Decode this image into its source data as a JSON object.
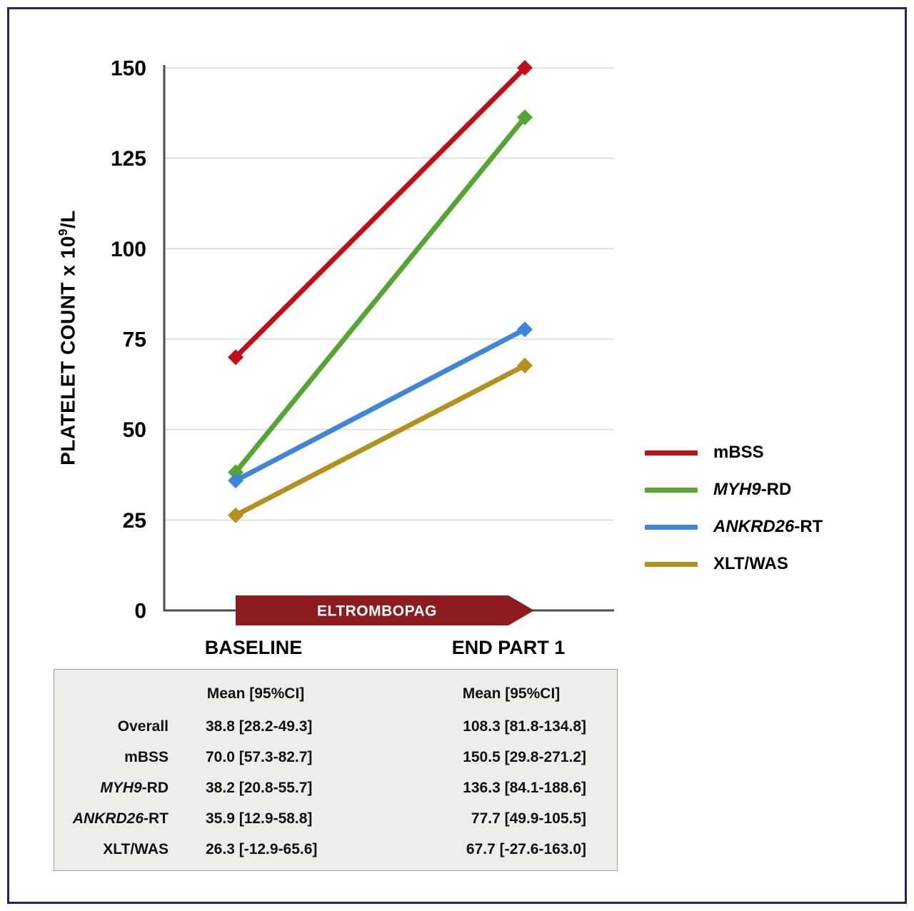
{
  "figure": {
    "ylabel_pre": "PLATELET COUNT x 10",
    "ylabel_sup": "9",
    "ylabel_post": "/L",
    "x_labels": [
      "BASELINE",
      "END PART 1"
    ]
  },
  "legend": {
    "items": [
      {
        "italic": "",
        "rest": "mBSS"
      },
      {
        "italic": "MYH9",
        "rest": "-RD"
      },
      {
        "italic": "ANKRD26",
        "rest": "-RT"
      },
      {
        "italic": "",
        "rest": "XLT/WAS"
      }
    ]
  },
  "table": {
    "headers": [
      "Mean [95%CI]",
      "Mean [95%CI]"
    ],
    "rows": [
      {
        "label_italic": "",
        "label_rest": "Overall",
        "baseline": "38.8 [28.2-49.3]",
        "end_part1": "108.3 [81.8-134.8]"
      },
      {
        "label_italic": "",
        "label_rest": "mBSS",
        "baseline": "70.0 [57.3-82.7]",
        "end_part1": "150.5 [29.8-271.2]"
      },
      {
        "label_italic": "MYH9",
        "label_rest": "-RD",
        "baseline": "38.2 [20.8-55.7]",
        "end_part1": "136.3 [84.1-188.6]"
      },
      {
        "label_italic": "ANKRD26",
        "label_rest": "-RT",
        "baseline": "35.9 [12.9-58.8]",
        "end_part1": "77.7 [49.9-105.5]"
      },
      {
        "label_italic": "",
        "label_rest": "XLT/WAS",
        "baseline": "26.3 [-12.9-65.6]",
        "end_part1": "67.7 [-27.6-163.0]"
      }
    ]
  },
  "chart_data": {
    "type": "line",
    "title": "",
    "x_categories": [
      "BASELINE",
      "END PART 1"
    ],
    "ylabel": "PLATELET COUNT x 10^9/L",
    "ylim": [
      0,
      150
    ],
    "yticks": [
      0,
      25,
      50,
      75,
      100,
      125,
      150
    ],
    "grid": true,
    "legend_position": "right",
    "series": [
      {
        "name": "mBSS",
        "values": [
          70.0,
          150.5
        ],
        "color": "#c01015"
      },
      {
        "name": "MYH9-RD",
        "values": [
          38.2,
          136.3
        ],
        "color": "#55a630"
      },
      {
        "name": "ANKRD26-RT",
        "values": [
          35.9,
          77.7
        ],
        "color": "#3c86df"
      },
      {
        "name": "XLT/WAS",
        "values": [
          26.3,
          67.7
        ],
        "color": "#b4911b"
      }
    ],
    "annotations": {
      "treatment_banner": "ELTROMBOPAG"
    }
  },
  "colors": {
    "banner": "#8e1c1f",
    "axis": "#4d4d4d",
    "grid": "#d9d9d9",
    "frame": "#24226a",
    "table_bg": "#edeeec",
    "table_border": "#9aa0a0"
  }
}
